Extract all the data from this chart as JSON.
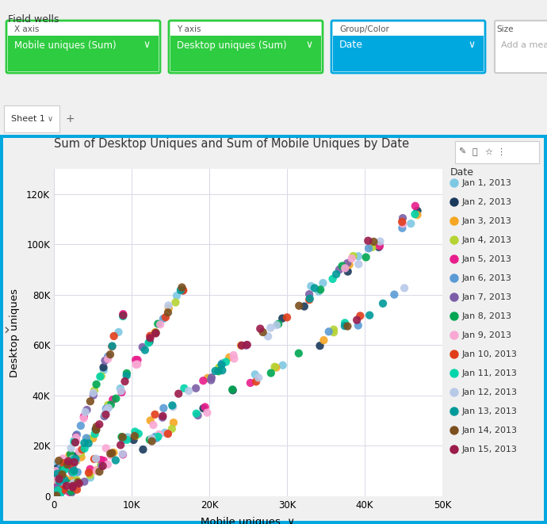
{
  "title": "Sum of Desktop Uniques and Sum of Mobile Uniques by Date",
  "xlabel": "Mobile uniques",
  "ylabel": "Desktop uniques",
  "xlim": [
    0,
    50000
  ],
  "ylim": [
    0,
    130000
  ],
  "xticks": [
    0,
    10000,
    20000,
    30000,
    40000,
    50000
  ],
  "yticks": [
    0,
    20000,
    40000,
    60000,
    80000,
    100000,
    120000
  ],
  "xtick_labels": [
    "0",
    "10K",
    "20K",
    "30K",
    "40K",
    "50K"
  ],
  "ytick_labels": [
    "0",
    "20K",
    "40K",
    "60K",
    "80K",
    "100K",
    "120K"
  ],
  "legend_title": "Date",
  "dates": [
    "Jan 1, 2013",
    "Jan 2, 2013",
    "Jan 3, 2013",
    "Jan 4, 2013",
    "Jan 5, 2013",
    "Jan 6, 2013",
    "Jan 7, 2013",
    "Jan 8, 2013",
    "Jan 9, 2013",
    "Jan 10, 2013",
    "Jan 11, 2013",
    "Jan 12, 2013",
    "Jan 13, 2013",
    "Jan 14, 2013",
    "Jan 15, 2013"
  ],
  "colors": [
    "#7ec8e3",
    "#1a3a5c",
    "#f5a623",
    "#b5d333",
    "#e91e8c",
    "#5b9bd5",
    "#7b5ea7",
    "#00a651",
    "#f9a8d4",
    "#e03e1a",
    "#00d4aa",
    "#b8c9e8",
    "#009999",
    "#7b4f1e",
    "#9b1b4a"
  ],
  "fig_bg": "#f0f0f0",
  "chart_bg": "#ffffff",
  "plot_bg": "#ffffff",
  "grid_color": "#d8d8e8",
  "marker_size": 55,
  "title_fontsize": 10.5,
  "axis_label_fontsize": 9.5,
  "tick_fontsize": 8.5,
  "legend_fontsize": 8,
  "ui_bg": "#f5f5f5",
  "header_bg": "#f0f0f0",
  "green_btn": "#2ecc40",
  "blue_btn": "#00a8e0",
  "tab_bg": "#ffffff"
}
